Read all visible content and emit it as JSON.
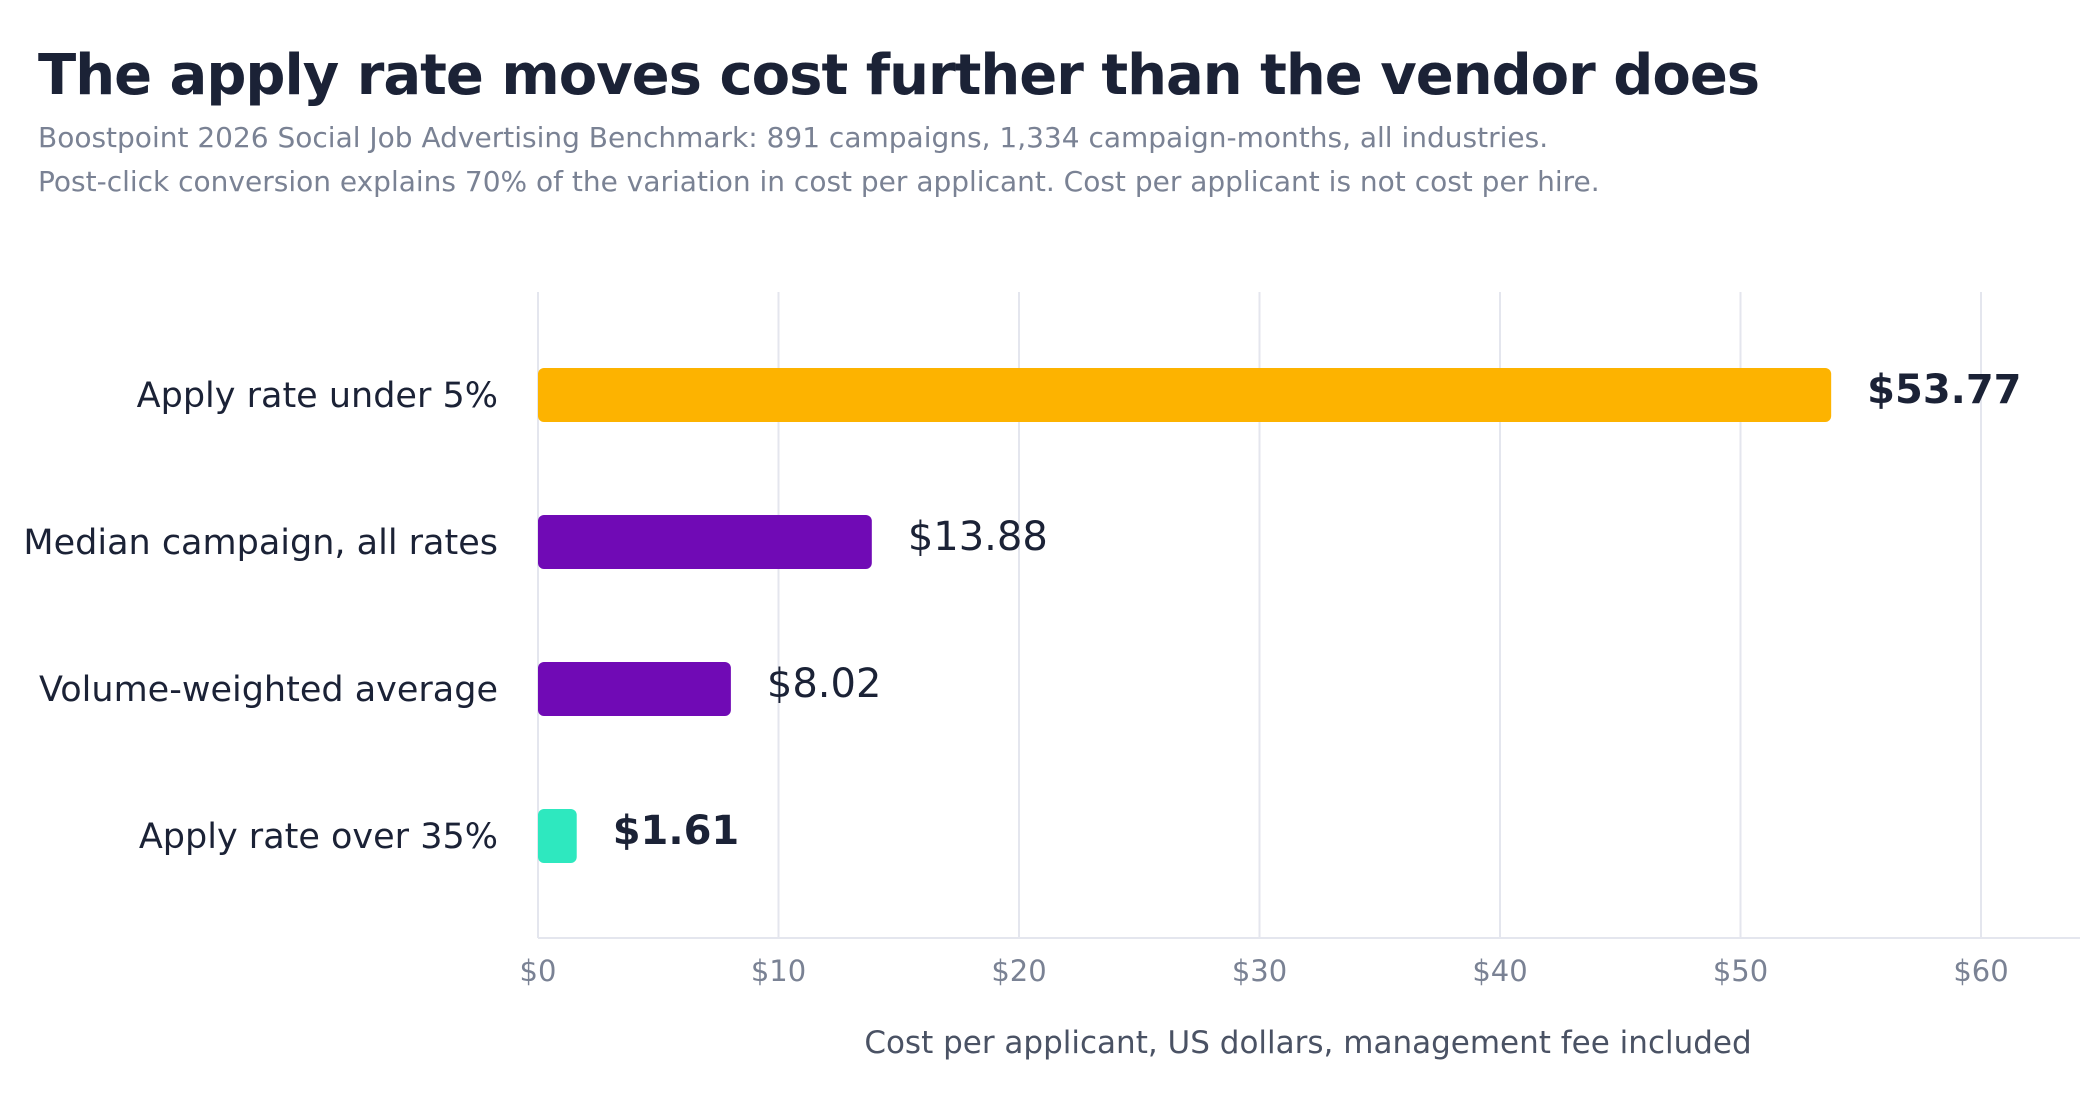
{
  "header": {
    "title": "The apply rate moves cost further than the vendor does",
    "subtitle_line1": "Boostpoint 2026 Social Job Advertising Benchmark: 891 campaigns, 1,334 campaign-months, all industries.",
    "subtitle_line2": "Post-click conversion explains 70% of the variation in cost per applicant. Cost per applicant is not cost per hire."
  },
  "chart_data": {
    "type": "bar",
    "orientation": "horizontal",
    "categories": [
      "Apply rate under 5%",
      "Median campaign, all rates",
      "Volume-weighted average",
      "Apply rate over 35%"
    ],
    "values": [
      53.77,
      13.88,
      8.02,
      1.61
    ],
    "value_labels": [
      "$53.77",
      "$13.88",
      "$8.02",
      "$1.61"
    ],
    "bold_labels": [
      true,
      false,
      false,
      true
    ],
    "colors": [
      "#FDB300",
      "#700AB5",
      "#700AB5",
      "#2EE8BF"
    ],
    "xlabel": "Cost per applicant, US dollars, management fee included",
    "xlim": [
      0,
      64
    ],
    "xticks": [
      0,
      10,
      20,
      30,
      40,
      50,
      60
    ],
    "xtick_labels": [
      "$0",
      "$10",
      "$20",
      "$30",
      "$40",
      "$50",
      "$60"
    ],
    "grid": true
  }
}
